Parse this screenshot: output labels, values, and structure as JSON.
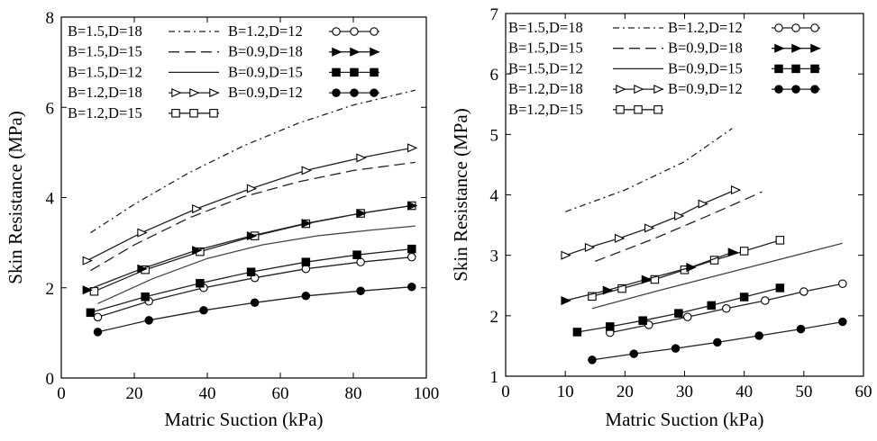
{
  "chart_data": [
    {
      "type": "line",
      "xlabel": "Matric Suction (kPa)",
      "ylabel": "Skin Resistance (MPa)",
      "xlim": [
        0,
        100
      ],
      "ylim": [
        0,
        8
      ],
      "xticks": [
        "0",
        "20",
        "40",
        "60",
        "80",
        "100"
      ],
      "yticks": [
        "0",
        "2",
        "4",
        "6",
        "8"
      ],
      "grid": false,
      "legend_position": "top-left",
      "series": [
        {
          "name": "B=1.5,D=18",
          "style": "dashdot",
          "marker": "none",
          "x": [
            8,
            20,
            35,
            50,
            65,
            80,
            97
          ],
          "y": [
            3.22,
            3.85,
            4.55,
            5.15,
            5.65,
            6.05,
            6.38
          ]
        },
        {
          "name": "B=1.5,D=15",
          "style": "dash",
          "marker": "none",
          "x": [
            8,
            20,
            35,
            50,
            65,
            80,
            97
          ],
          "y": [
            2.38,
            2.95,
            3.55,
            4.02,
            4.35,
            4.6,
            4.78
          ]
        },
        {
          "name": "B=1.5,D=12",
          "style": "solid",
          "marker": "none",
          "x": [
            10,
            25,
            40,
            55,
            70,
            85,
            97
          ],
          "y": [
            1.65,
            2.2,
            2.65,
            2.95,
            3.15,
            3.28,
            3.37
          ]
        },
        {
          "name": "B=1.2,D=18",
          "style": "solid",
          "marker": "open-triangle",
          "x": [
            7,
            22,
            37,
            52,
            67,
            82,
            96
          ],
          "y": [
            2.6,
            3.22,
            3.75,
            4.2,
            4.6,
            4.88,
            5.1
          ]
        },
        {
          "name": "B=1.2,D=15",
          "style": "solid",
          "marker": "open-square",
          "x": [
            9,
            23,
            38,
            53,
            67,
            82,
            96
          ],
          "y": [
            1.92,
            2.4,
            2.8,
            3.15,
            3.42,
            3.65,
            3.82
          ]
        },
        {
          "name": "B=1.2,D=12",
          "style": "solid",
          "marker": "open-circle",
          "x": [
            10,
            24,
            39,
            53,
            67,
            82,
            96
          ],
          "y": [
            1.35,
            1.7,
            2.0,
            2.22,
            2.42,
            2.57,
            2.68
          ]
        },
        {
          "name": "B=0.9,D=18",
          "style": "solid",
          "marker": "filled-triangle",
          "x": [
            7,
            22,
            37,
            52,
            67,
            82,
            96
          ],
          "y": [
            1.95,
            2.42,
            2.83,
            3.15,
            3.43,
            3.65,
            3.82
          ]
        },
        {
          "name": "B=0.9,D=15",
          "style": "solid",
          "marker": "filled-square",
          "x": [
            8,
            23,
            38,
            52,
            67,
            81,
            96
          ],
          "y": [
            1.45,
            1.8,
            2.1,
            2.35,
            2.57,
            2.73,
            2.86
          ]
        },
        {
          "name": "B=0.9,D=12",
          "style": "solid",
          "marker": "filled-circle",
          "x": [
            10,
            24,
            39,
            53,
            67,
            82,
            96
          ],
          "y": [
            1.02,
            1.28,
            1.5,
            1.67,
            1.82,
            1.93,
            2.02
          ]
        }
      ]
    },
    {
      "type": "line",
      "xlabel": "Matric Suction (kPa)",
      "ylabel": "Skin Resistance (MPa)",
      "xlim": [
        0,
        60
      ],
      "ylim": [
        1,
        7
      ],
      "xticks": [
        "0",
        "10",
        "20",
        "30",
        "40",
        "50",
        "60"
      ],
      "yticks": [
        "1",
        "2",
        "3",
        "4",
        "5",
        "6",
        "7"
      ],
      "grid": false,
      "legend_position": "top-left",
      "series": [
        {
          "name": "B=1.5,D=18",
          "style": "dashdot",
          "marker": "none",
          "x": [
            10,
            20,
            30,
            38
          ],
          "y": [
            3.72,
            4.08,
            4.55,
            5.1
          ]
        },
        {
          "name": "B=1.5,D=15",
          "style": "dash",
          "marker": "none",
          "x": [
            15,
            25,
            35,
            43
          ],
          "y": [
            2.9,
            3.28,
            3.7,
            4.05
          ]
        },
        {
          "name": "B=1.5,D=12",
          "style": "solid",
          "marker": "none",
          "x": [
            14.5,
            25,
            40,
            56.5
          ],
          "y": [
            2.12,
            2.4,
            2.78,
            3.2
          ]
        },
        {
          "name": "B=1.2,D=18",
          "style": "solid",
          "marker": "open-triangle",
          "x": [
            10,
            14,
            19,
            24,
            29,
            33,
            38.5
          ],
          "y": [
            3.0,
            3.13,
            3.28,
            3.45,
            3.65,
            3.85,
            4.08
          ]
        },
        {
          "name": "B=1.2,D=15",
          "style": "solid",
          "marker": "open-square",
          "x": [
            14.5,
            19.5,
            25,
            30,
            35,
            40,
            46
          ],
          "y": [
            2.32,
            2.45,
            2.6,
            2.76,
            2.92,
            3.07,
            3.25
          ]
        },
        {
          "name": "B=1.2,D=12",
          "style": "solid",
          "marker": "open-circle",
          "x": [
            17.5,
            24,
            30.5,
            37,
            43.5,
            50,
            56.5
          ],
          "y": [
            1.72,
            1.85,
            1.98,
            2.12,
            2.25,
            2.4,
            2.53
          ]
        },
        {
          "name": "B=0.9,D=18",
          "style": "solid",
          "marker": "filled-triangle",
          "x": [
            10,
            17,
            23.5,
            31,
            38
          ],
          "y": [
            2.25,
            2.42,
            2.6,
            2.8,
            3.05
          ]
        },
        {
          "name": "B=0.9,D=15",
          "style": "solid",
          "marker": "filled-square",
          "x": [
            12,
            17.5,
            23,
            29,
            34.5,
            40,
            46
          ],
          "y": [
            1.73,
            1.82,
            1.92,
            2.04,
            2.17,
            2.31,
            2.46
          ]
        },
        {
          "name": "B=0.9,D=12",
          "style": "solid",
          "marker": "filled-circle",
          "x": [
            14.5,
            21.5,
            28.5,
            35.5,
            42.5,
            49.5,
            56.5
          ],
          "y": [
            1.27,
            1.37,
            1.46,
            1.56,
            1.67,
            1.78,
            1.9
          ]
        }
      ]
    }
  ]
}
